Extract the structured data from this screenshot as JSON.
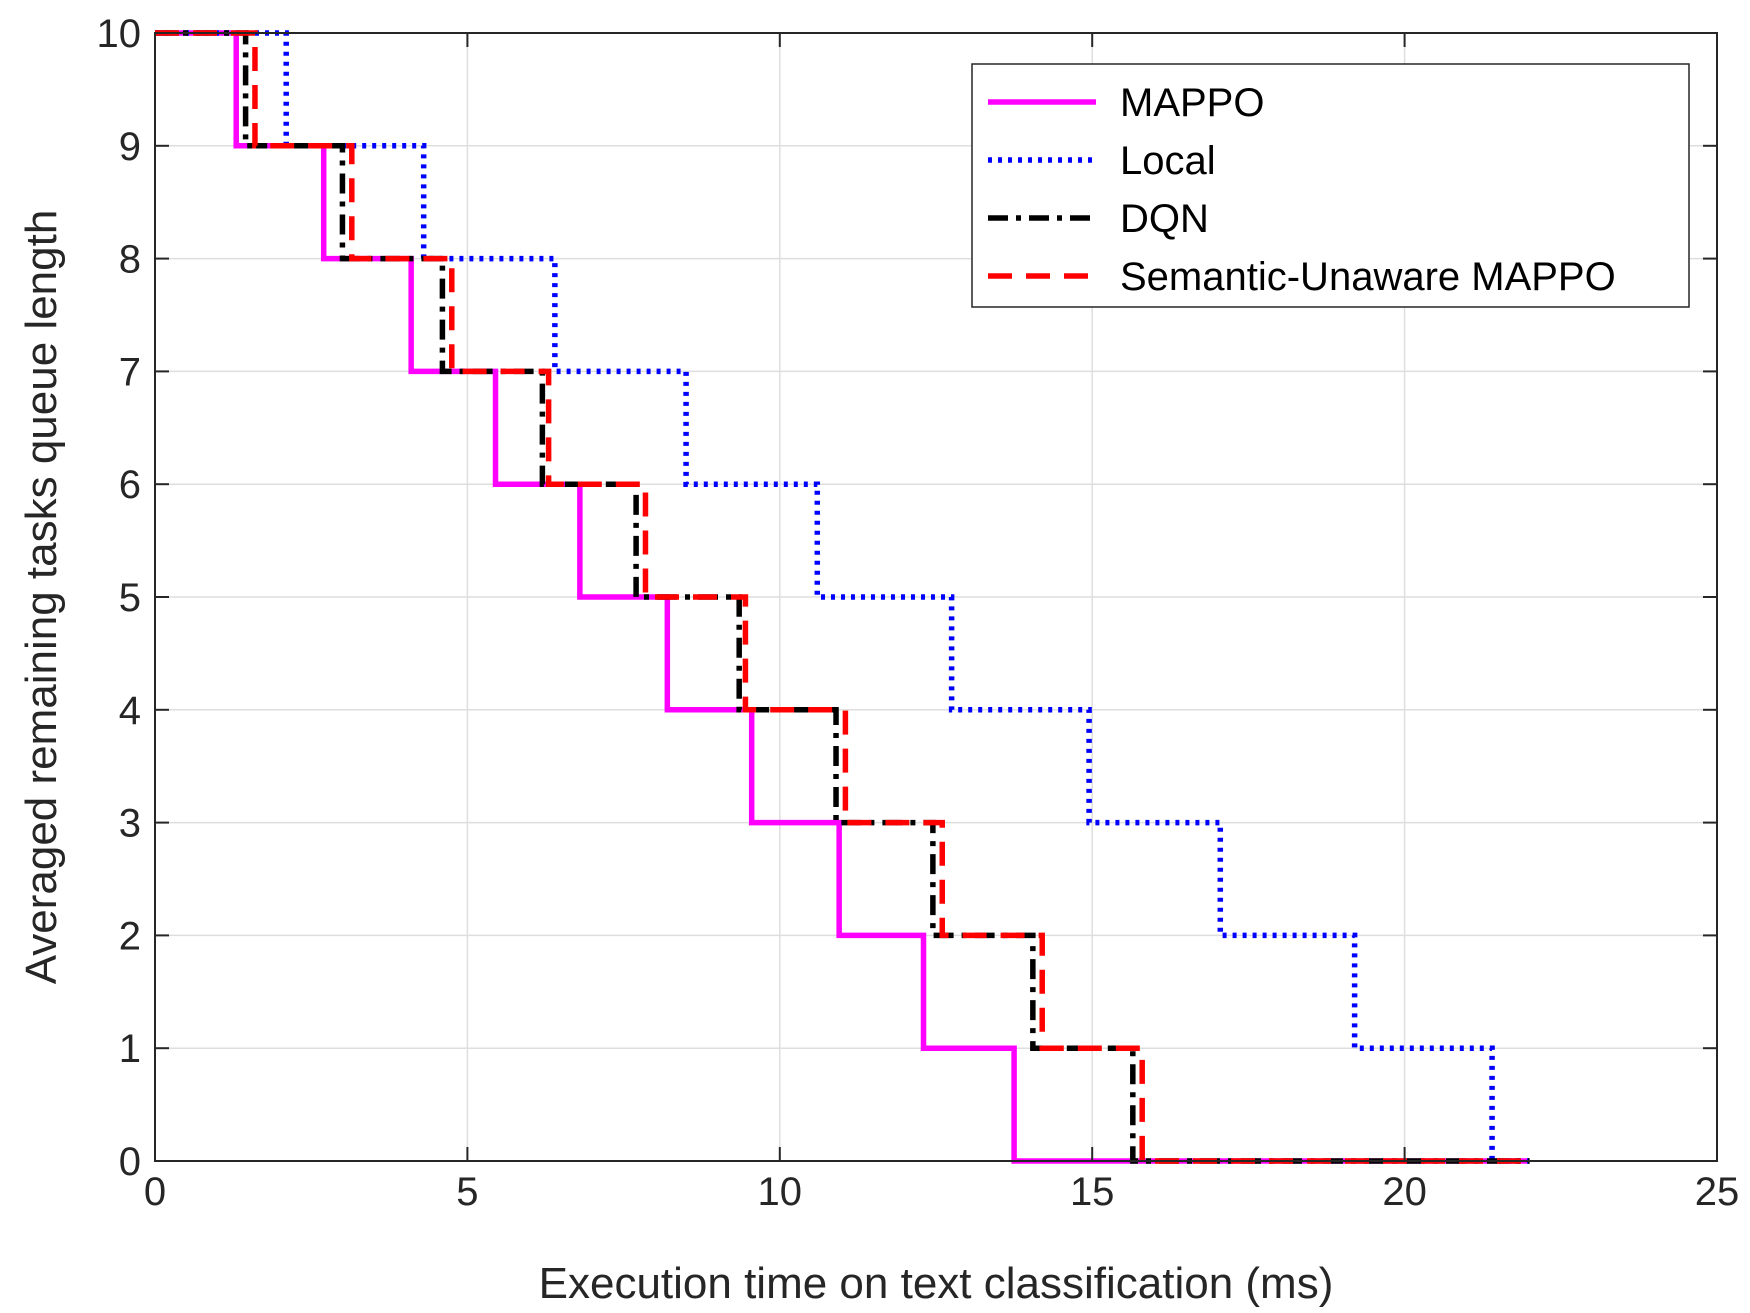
{
  "chart_data": {
    "type": "line",
    "xlabel": "Execution time on text classification (ms)",
    "ylabel": "Averaged remaining tasks queue length",
    "xlim": [
      0,
      25
    ],
    "ylim": [
      0,
      10
    ],
    "xticks": [
      0,
      5,
      10,
      15,
      20,
      25
    ],
    "yticks": [
      0,
      1,
      2,
      3,
      4,
      5,
      6,
      7,
      8,
      9,
      10
    ],
    "grid": true,
    "legend_position": "top-right",
    "series": [
      {
        "name": "MAPPO",
        "color": "#ff00ff",
        "style": "solid",
        "drop_times": [
          1.3,
          2.7,
          4.1,
          5.45,
          6.8,
          8.2,
          9.55,
          10.95,
          12.3,
          13.75
        ],
        "end_time": 22.0
      },
      {
        "name": "Local",
        "color": "#0000ff",
        "style": "dotted",
        "drop_times": [
          2.1,
          4.3,
          6.4,
          8.5,
          10.6,
          12.75,
          14.95,
          17.05,
          19.2,
          21.4
        ],
        "end_time": 22.0
      },
      {
        "name": "DQN",
        "color": "#000000",
        "style": "dashdot",
        "drop_times": [
          1.45,
          3.0,
          4.6,
          6.2,
          7.7,
          9.35,
          10.9,
          12.45,
          14.05,
          15.65
        ],
        "end_time": 22.0
      },
      {
        "name": "Semantic-Unaware MAPPO",
        "color": "#ff0000",
        "style": "dashed",
        "drop_times": [
          1.6,
          3.15,
          4.75,
          6.3,
          7.85,
          9.45,
          11.05,
          12.6,
          14.2,
          15.8
        ],
        "end_time": 22.0
      }
    ]
  }
}
